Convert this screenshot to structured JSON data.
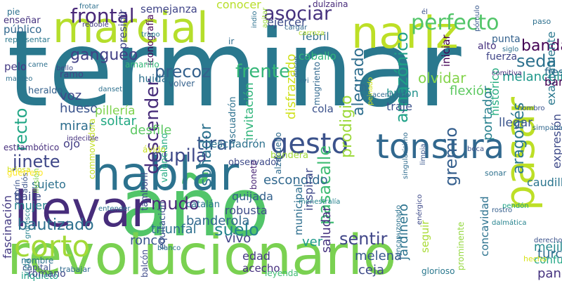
{
  "word_cloud": {
    "words": [
      {
        "text": "terminar",
        "color": "#2a788e"
      },
      {
        "text": "año",
        "color": "#52c569"
      },
      {
        "text": "revolucionario",
        "color": "#7ad151"
      },
      {
        "text": "llevar",
        "color": "#472d7b"
      },
      {
        "text": "hablar",
        "color": "#2c728e"
      },
      {
        "text": "nariz",
        "color": "#bddf26"
      },
      {
        "text": "marcial",
        "color": "#b5de2b"
      },
      {
        "text": "pasar",
        "color": "#bddf26"
      },
      {
        "text": "tonsura",
        "color": "#31688e"
      },
      {
        "text": "corto",
        "color": "#a2da37"
      },
      {
        "text": "gesto",
        "color": "#3b528b"
      },
      {
        "text": "perfecto",
        "color": "#52c569"
      },
      {
        "text": "frontal",
        "color": "#482878"
      },
      {
        "text": "asociar",
        "color": "#46327e"
      },
      {
        "text": "amazónico",
        "color": "#1fa187"
      },
      {
        "text": "descender",
        "color": "#472c7a"
      },
      {
        "text": "precoz",
        "color": "#34618d"
      },
      {
        "text": "frente",
        "color": "#35b779"
      },
      {
        "text": "pupila",
        "color": "#3e4989"
      },
      {
        "text": "tirar",
        "color": "#38588c"
      },
      {
        "text": "jinete",
        "color": "#3f4788"
      },
      {
        "text": "mudo",
        "color": "#482878"
      },
      {
        "text": "suelo",
        "color": "#25848e"
      },
      {
        "text": "sentir",
        "color": "#404688"
      },
      {
        "text": "pasacalle",
        "color": "#3fbc73"
      },
      {
        "text": "gremio",
        "color": "#355f8d"
      },
      {
        "text": "aragonés",
        "color": "#2a788e"
      },
      {
        "text": "prodigio",
        "color": "#9dd93b"
      },
      {
        "text": "soñador",
        "color": "#2c728e"
      },
      {
        "text": "gangueo",
        "color": "#424086"
      },
      {
        "text": "recto",
        "color": "#21a685"
      },
      {
        "text": "melancólico",
        "color": "#1f988b"
      },
      {
        "text": "seda",
        "color": "#2d718e"
      },
      {
        "text": "banda",
        "color": "#440154"
      },
      {
        "text": "olvidar",
        "color": "#84d44b"
      },
      {
        "text": "alegrado",
        "color": "#2e6e8e"
      },
      {
        "text": "flexión",
        "color": "#5ec962"
      },
      {
        "text": "bautizado",
        "color": "#2d708e"
      },
      {
        "text": "triunfal",
        "color": "#2d708e"
      },
      {
        "text": "escondido",
        "color": "#31688e"
      },
      {
        "text": "melena",
        "color": "#38588c"
      },
      {
        "text": "ver",
        "color": "#1e9b8a"
      },
      {
        "text": "ceja",
        "color": "#3e4a89"
      },
      {
        "text": "mejilla",
        "color": "#23888e"
      },
      {
        "text": "turco",
        "color": "#2e6d8e"
      },
      {
        "text": "jardinero",
        "color": "#2c738e"
      },
      {
        "text": "saludar",
        "color": "#46337f"
      },
      {
        "text": "portador",
        "color": "#27808e"
      },
      {
        "text": "escuadrón",
        "color": "#2d718e"
      },
      {
        "text": "disfrazado",
        "color": "#d0e11c"
      },
      {
        "text": "invitación",
        "color": "#31b57b"
      },
      {
        "text": "hueso",
        "color": "#3a548c"
      },
      {
        "text": "mirar",
        "color": "#2e6e8e"
      },
      {
        "text": "voz",
        "color": "#3f4889"
      },
      {
        "text": "sujeto",
        "color": "#2d718e"
      },
      {
        "text": "ojo",
        "color": "#433e85"
      },
      {
        "text": "quijada",
        "color": "#34618d"
      },
      {
        "text": "robusta",
        "color": "#3e4c8a"
      },
      {
        "text": "banderola",
        "color": "#31688e"
      },
      {
        "text": "vivo",
        "color": "#414487"
      },
      {
        "text": "ronco",
        "color": "#39558c"
      },
      {
        "text": "pillería",
        "color": "#7fd34e"
      },
      {
        "text": "soltar",
        "color": "#23a983"
      },
      {
        "text": "desfile",
        "color": "#5cc863"
      },
      {
        "text": "mujer",
        "color": "#26828e"
      },
      {
        "text": "baile",
        "color": "#3e4a89"
      },
      {
        "text": "fascinación",
        "color": "#443a83"
      },
      {
        "text": "edad",
        "color": "#453882"
      },
      {
        "text": "acecho",
        "color": "#46307e"
      },
      {
        "text": "cola",
        "color": "#3b518b"
      },
      {
        "text": "traje",
        "color": "#3b518b"
      },
      {
        "text": "bufón",
        "color": "#21918c"
      },
      {
        "text": "exactamente",
        "color": "#2a788e"
      },
      {
        "text": "histórico",
        "color": "#26ad81"
      },
      {
        "text": "llegar",
        "color": "#3a548c"
      },
      {
        "text": "barra",
        "color": "#440154"
      },
      {
        "text": "fiesta",
        "color": "#2f6b8e"
      },
      {
        "text": "expresión",
        "color": "#3e4a89"
      },
      {
        "text": "caudillo",
        "color": "#2b758e"
      },
      {
        "text": "pandero",
        "color": "#46337f"
      },
      {
        "text": "confuso",
        "color": "#22a785"
      },
      {
        "text": "seguir",
        "color": "#a8db34"
      },
      {
        "text": "municipal",
        "color": "#2e6e8e"
      },
      {
        "text": "inspirar",
        "color": "#3f4889"
      },
      {
        "text": "semejanza",
        "color": "#404588"
      },
      {
        "text": "presidir",
        "color": "#3f4788"
      },
      {
        "text": "iconografía",
        "color": "#440154"
      },
      {
        "text": "huida",
        "color": "#2d708e"
      },
      {
        "text": "ejercer",
        "color": "#3e4c8a"
      },
      {
        "text": "febril",
        "color": "#2e6e8e"
      },
      {
        "text": "iniciar",
        "color": "#440154"
      },
      {
        "text": "caballo",
        "color": "#31b57b"
      },
      {
        "text": "punta",
        "color": "#34618d"
      },
      {
        "text": "fuerza",
        "color": "#404688"
      },
      {
        "text": "alto",
        "color": "#46307e"
      },
      {
        "text": "conocer",
        "color": "#b8de29"
      },
      {
        "text": "dulzaina",
        "color": "#472a7a"
      },
      {
        "text": "ir",
        "color": "#2f6c8e"
      },
      {
        "text": "volver",
        "color": "#34618d"
      },
      {
        "text": "amarillo",
        "color": "#35b779"
      },
      {
        "text": "ramo",
        "color": "#414487"
      },
      {
        "text": "heraldo",
        "color": "#34618d"
      },
      {
        "text": "pelo",
        "color": "#443983"
      },
      {
        "text": "público",
        "color": "#31688e"
      },
      {
        "text": "enseñar",
        "color": "#46337f"
      },
      {
        "text": "pie",
        "color": "#2d708e"
      },
      {
        "text": "representar",
        "color": "#2a788e"
      },
      {
        "text": "estrambótico",
        "color": "#472f7d"
      },
      {
        "text": "observador",
        "color": "#3e4a89"
      },
      {
        "text": "bandera",
        "color": "#a0da39"
      },
      {
        "text": "valenciano",
        "color": "#25ab82"
      },
      {
        "text": "escuadrón",
        "color": "#2d718e"
      },
      {
        "text": "alzacuello",
        "color": "#2f6b8e"
      },
      {
        "text": "mugriento",
        "color": "#31688e"
      },
      {
        "text": "ávido",
        "color": "#c8e020"
      },
      {
        "text": "commovedora",
        "color": "#c2df23"
      },
      {
        "text": "entender",
        "color": "#2d708e"
      },
      {
        "text": "tamboril",
        "color": "#3e4a89"
      },
      {
        "text": "catalán",
        "color": "#2b748e"
      },
      {
        "text": "equitación",
        "color": "#3b528b"
      },
      {
        "text": "leyenda",
        "color": "#3fbc73"
      },
      {
        "text": "menestralía",
        "color": "#26828e"
      },
      {
        "text": "bonete",
        "color": "#482475"
      },
      {
        "text": "briosa",
        "color": "#d2e21b"
      },
      {
        "text": "grotesco",
        "color": "#26828e"
      },
      {
        "text": "ilusión",
        "color": "#84d44b"
      },
      {
        "text": "adiós",
        "color": "#3a538b"
      },
      {
        "text": "cobrín",
        "color": "#3a538b"
      },
      {
        "text": "guerrero",
        "color": "#fde725"
      },
      {
        "text": "vida",
        "color": "#26828e"
      },
      {
        "text": "nombre",
        "color": "#2c728e"
      },
      {
        "text": "capital",
        "color": "#3b518b"
      },
      {
        "text": "inquieto",
        "color": "#1fa088"
      },
      {
        "text": "romano",
        "color": "#404688"
      },
      {
        "text": "trabajar",
        "color": "#2f6b8e"
      },
      {
        "text": "blanco",
        "color": "#2d718e"
      },
      {
        "text": "balcón",
        "color": "#3e4a89"
      },
      {
        "text": "glorioso",
        "color": "#2a788e"
      },
      {
        "text": "prominente",
        "color": "#95d840"
      },
      {
        "text": "concavidad",
        "color": "#2c728e"
      },
      {
        "text": "encapuzonado",
        "color": "#2c728e"
      },
      {
        "text": "hecho",
        "color": "#d8e219"
      },
      {
        "text": "derecho",
        "color": "#3b528b"
      },
      {
        "text": "pendón",
        "color": "#20a386"
      },
      {
        "text": "dalmática",
        "color": "#25838e"
      },
      {
        "text": "rostro",
        "color": "#355f8d"
      },
      {
        "text": "sonar",
        "color": "#2d708e"
      },
      {
        "text": "singularísimo",
        "color": "#2f6c8e"
      },
      {
        "text": "enérgico",
        "color": "#3e4a89"
      },
      {
        "text": "limpia",
        "color": "#39568c"
      },
      {
        "text": "boca",
        "color": "#3b528b"
      },
      {
        "text": "simpatía",
        "color": "#31688e"
      },
      {
        "text": "hombro",
        "color": "#3a538b"
      },
      {
        "text": "comitiva",
        "color": "#472f7d"
      },
      {
        "text": "pómulo",
        "color": "#38588c"
      },
      {
        "text": "siglo",
        "color": "#2d708e"
      },
      {
        "text": "paso",
        "color": "#2d708e"
      },
      {
        "text": "él",
        "color": "#3b528b"
      },
      {
        "text": "cargar",
        "color": "#31688e"
      },
      {
        "text": "xvi",
        "color": "#2f6b8e"
      },
      {
        "text": "acentuado",
        "color": "#31688e"
      },
      {
        "text": "peinado",
        "color": "#cde11d"
      },
      {
        "text": "desen",
        "color": "#2f6b8e"
      },
      {
        "text": "carroza",
        "color": "#b5de2b"
      },
      {
        "text": "agitar",
        "color": "#9bd93c"
      },
      {
        "text": "indio",
        "color": "#2d718e"
      },
      {
        "text": "frotar",
        "color": "#2d708e"
      },
      {
        "text": "redoble",
        "color": "#443983"
      },
      {
        "text": "trapo",
        "color": "#27808e"
      },
      {
        "text": "carne",
        "color": "#2d708e"
      },
      {
        "text": "bello",
        "color": "#3e4a89"
      },
      {
        "text": "manteo",
        "color": "#2d708e"
      },
      {
        "text": "danset",
        "color": "#2d708e"
      },
      {
        "text": "indecible",
        "color": "#46327e"
      }
    ]
  }
}
